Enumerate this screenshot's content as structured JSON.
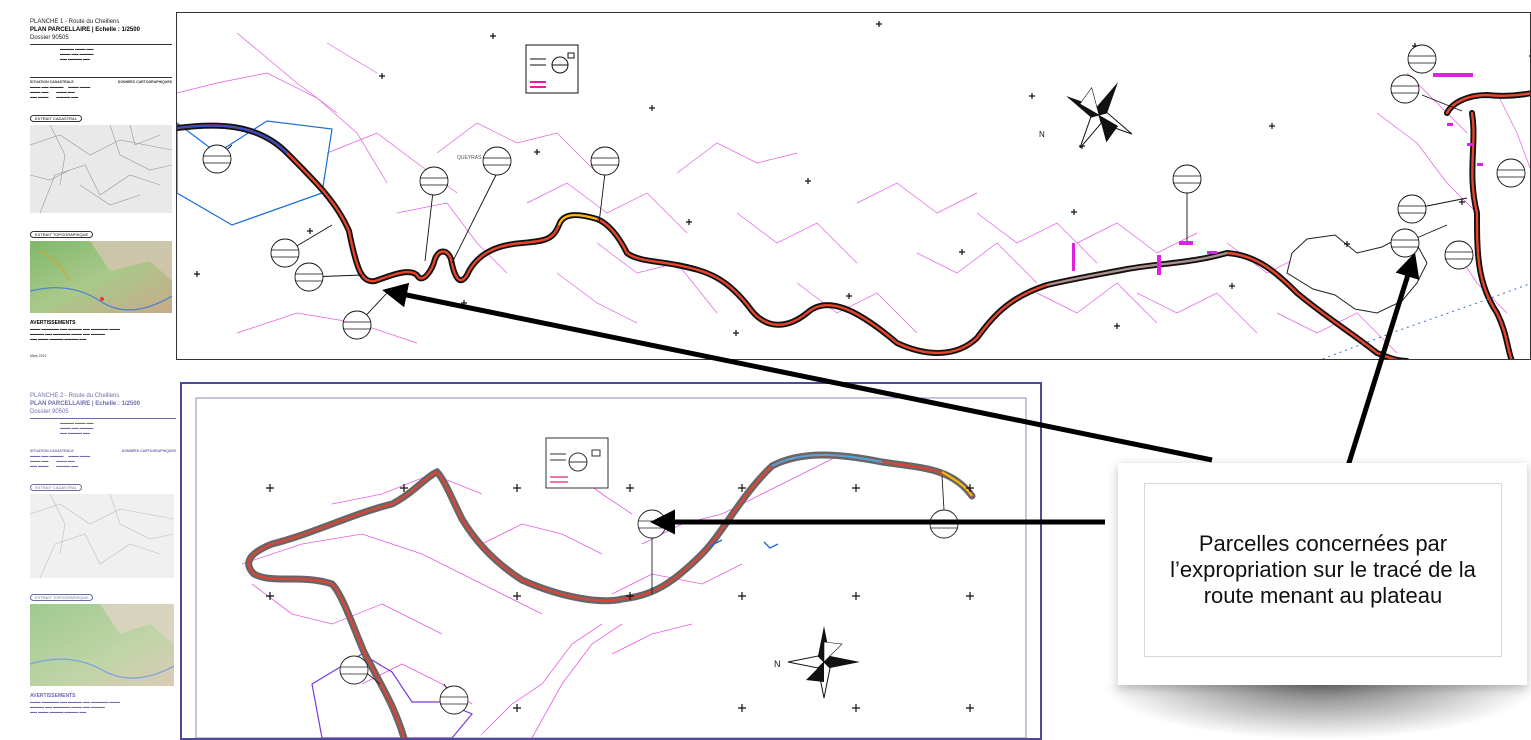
{
  "callout": {
    "text": "Parcelles concernées par l’expropriation sur le tracé de la route menant au plateau"
  },
  "top_plan": {
    "sheet_label": "PLANCHE 1 - Route du Cheillens",
    "title": "PLAN PARCELLAIRE | Echelle : 1/2500",
    "dossier": "Dossier 90505",
    "section_cadastre": "SITUATION CADASTRALE",
    "section_coords": "DONNÉES CARTOGRAPHIQUES",
    "extrait_label": "EXTRAIT CADASTRAL",
    "extrait_topo_label": "EXTRAIT TOPOGRAPHIQUE",
    "avertissements": "AVERTISSEMENTS",
    "date": "Mars 2021",
    "parcel_label": "QUEYRAS"
  },
  "bottom_plan": {
    "sheet_label": "PLANCHE 2 - Route du Cheillens",
    "title": "PLAN PARCELLAIRE | Echelle : 1/2500",
    "dossier": "Dossier 90505",
    "section_cadastre": "SITUATION CADASTRALE",
    "section_coords": "DONNÉES CARTOGRAPHIQUES",
    "extrait_label": "EXTRAIT CADASTRAL",
    "extrait_topo_label": "EXTRAIT TOPOGRAPHIQUE",
    "avertissements": "AVERTISSEMENTS"
  },
  "colors": {
    "parcel_lines": "#e040e0",
    "road_outer": "#111111",
    "road_inner": "#e8442a",
    "arrow": "#000000"
  }
}
